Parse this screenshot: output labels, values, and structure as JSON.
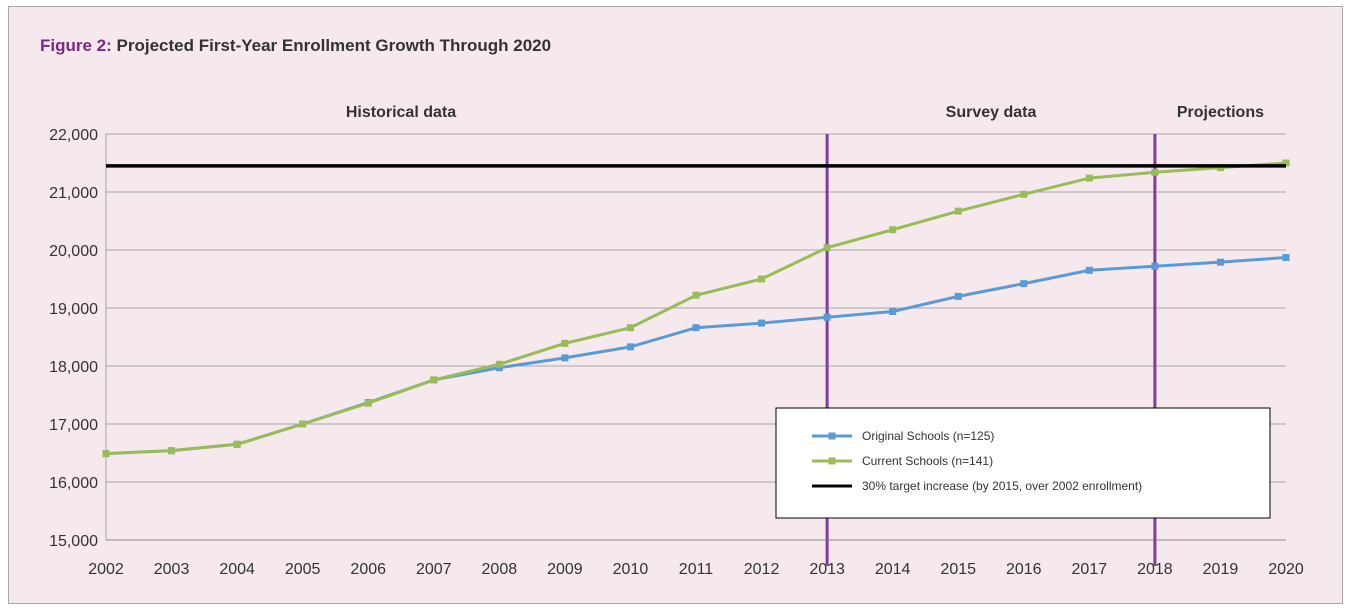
{
  "figure": {
    "label": "Figure 2:",
    "title": "Projected First-Year Enrollment Growth Through 2020"
  },
  "chart_data": {
    "type": "line",
    "x": [
      2002,
      2003,
      2004,
      2005,
      2006,
      2007,
      2008,
      2009,
      2010,
      2011,
      2012,
      2013,
      2014,
      2015,
      2016,
      2017,
      2018,
      2019,
      2020
    ],
    "ylim": [
      15000,
      22000
    ],
    "yticks": [
      15000,
      16000,
      17000,
      18000,
      19000,
      20000,
      21000,
      22000
    ],
    "ytick_labels": [
      "15,000",
      "16,000",
      "17,000",
      "18,000",
      "19,000",
      "20,000",
      "21,000",
      "22,000"
    ],
    "grid": "horizontal",
    "series": [
      {
        "name": "Original Schools (n=125)",
        "color": "#5b9bd5",
        "values": [
          16490,
          16540,
          16650,
          17000,
          17370,
          17760,
          17970,
          18140,
          18330,
          18660,
          18740,
          18840,
          18940,
          19200,
          19420,
          19650,
          19720,
          19790,
          19870
        ]
      },
      {
        "name": "Current Schools (n=141)",
        "color": "#9bbb59",
        "values": [
          16490,
          16540,
          16650,
          17000,
          17360,
          17760,
          18030,
          18390,
          18660,
          19220,
          19500,
          20040,
          20350,
          20670,
          20960,
          21240,
          21340,
          21420,
          21500
        ]
      }
    ],
    "target": {
      "name": "30% target increase (by 2015, over 2002 enrollment)",
      "value": 21450,
      "color": "#000000"
    },
    "dividers": {
      "values": [
        2013,
        2018
      ],
      "color": "#7f3f98"
    },
    "sections": [
      {
        "label": "Historical data",
        "x": 2006.5
      },
      {
        "label": "Survey data",
        "x": 2015.5
      },
      {
        "label": "Projections",
        "x": 2019
      }
    ],
    "legend": "bottom-right"
  }
}
